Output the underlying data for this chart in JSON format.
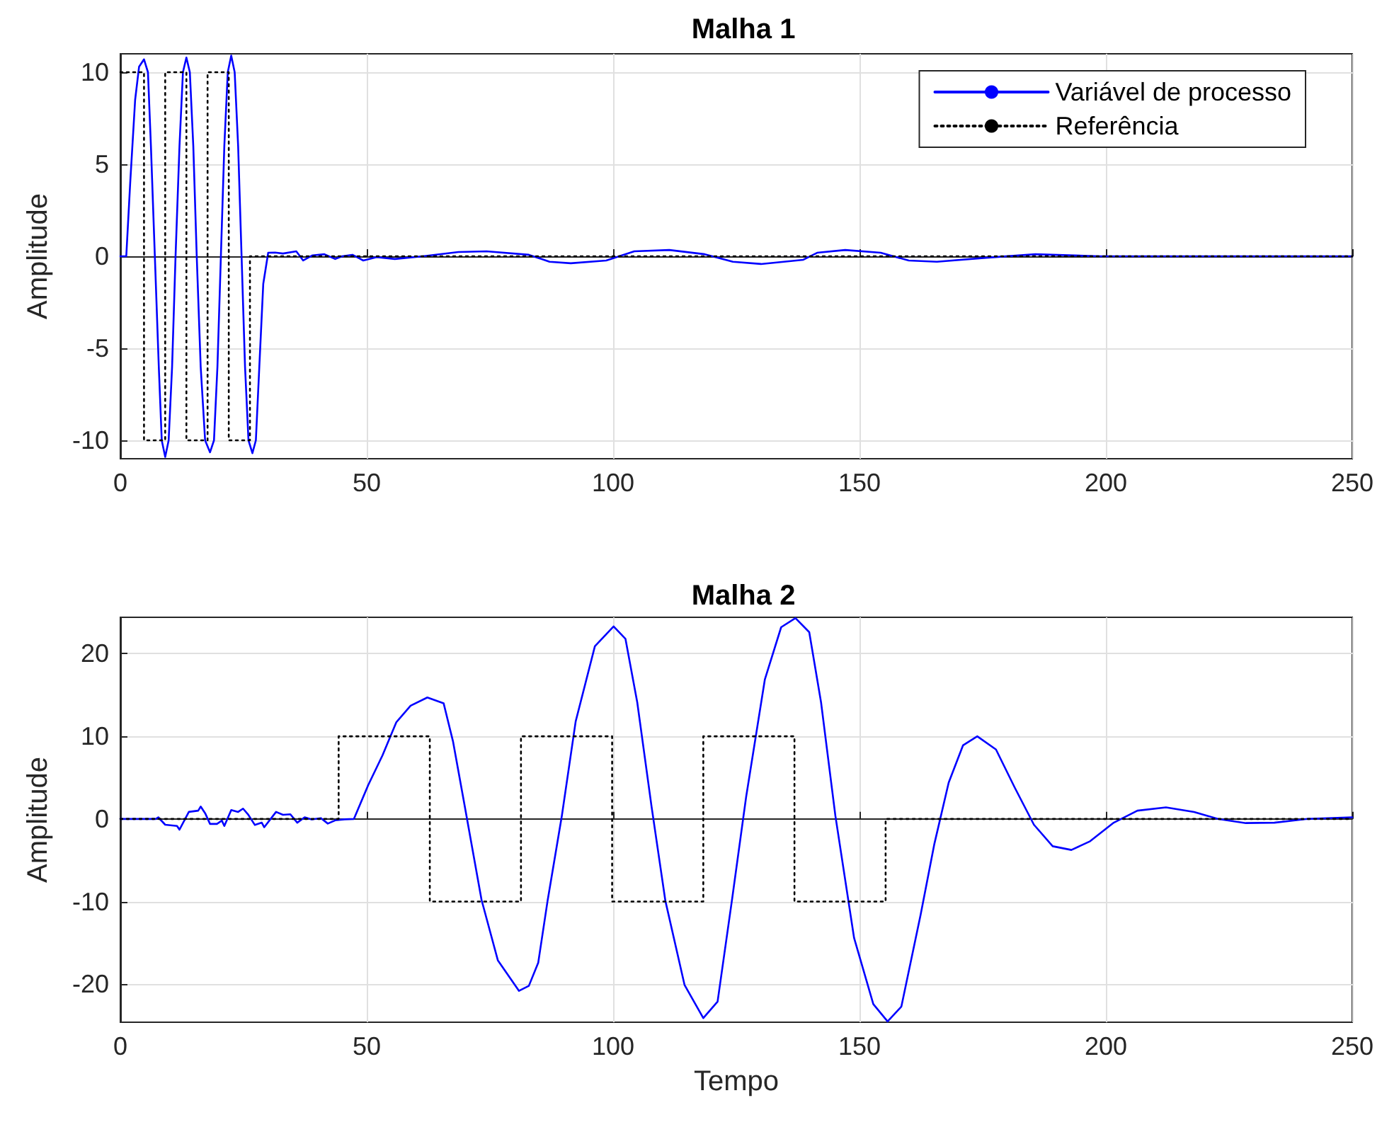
{
  "chart_data": [
    {
      "type": "line",
      "title": "Malha 1",
      "ylabel": "Amplitude",
      "xlim": [
        0,
        250
      ],
      "xticks": [
        0,
        50,
        100,
        150,
        200,
        250
      ],
      "ylim": [
        -11,
        11
      ],
      "yticks": [
        -10,
        -5,
        0,
        5,
        10
      ],
      "grid": true,
      "legend": "top right",
      "marker": "none",
      "series": [
        {
          "name": "Variável de processo",
          "color": "#0000ff",
          "line_style": "solid",
          "x": [
            0,
            1.2,
            2,
            3,
            3.8,
            4.8,
            5.6,
            6.2,
            7,
            7.8,
            8.4,
            9.1,
            9.8,
            10.5,
            11.2,
            12,
            12.7,
            13.4,
            14.1,
            14.8,
            15.5,
            16.3,
            17.2,
            18.2,
            19,
            19.7,
            20.4,
            21.1,
            21.8,
            22.5,
            23.2,
            23.9,
            24.6,
            25.3,
            26,
            26.8,
            27.5,
            28.2,
            29,
            30,
            31.4,
            33,
            35.7,
            37.1,
            39,
            41.4,
            43.6,
            45,
            47.1,
            49.3,
            52,
            55.7,
            61.4,
            68.6,
            74.3,
            82.9,
            87.1,
            91.4,
            98.6,
            104.3,
            111.4,
            118.6,
            124.3,
            130,
            138.6,
            141.4,
            147.1,
            154.3,
            160,
            165.7,
            175.7,
            185.7,
            198.6,
            212.9,
            250
          ],
          "values": [
            0,
            0,
            4,
            8.5,
            10.3,
            10.7,
            10,
            6,
            0,
            -6,
            -10,
            -10.9,
            -10,
            -6,
            0,
            6,
            10,
            10.8,
            10,
            6,
            0,
            -6,
            -10,
            -10.65,
            -10,
            -6,
            0,
            6,
            10,
            10.9,
            10,
            6,
            0,
            -6,
            -10,
            -10.7,
            -10,
            -6,
            -1.5,
            0.19,
            0.2,
            0.15,
            0.27,
            -0.23,
            0.05,
            0.11,
            -0.15,
            0,
            0.08,
            -0.23,
            -0.05,
            -0.15,
            0,
            0.23,
            0.27,
            0.08,
            -0.3,
            -0.38,
            -0.23,
            0.27,
            0.34,
            0.11,
            -0.3,
            -0.42,
            -0.19,
            0.19,
            0.34,
            0.19,
            -0.23,
            -0.3,
            -0.08,
            0.11,
            0,
            0,
            0
          ]
        },
        {
          "name": "Referência",
          "color": "#000000",
          "line_style": "dotted",
          "x": [
            0,
            4.8,
            4.8,
            9.1,
            9.1,
            13.4,
            13.4,
            17.7,
            17.7,
            22,
            22,
            26.3,
            26.3,
            250
          ],
          "values": [
            10,
            10,
            -10,
            -10,
            10,
            10,
            -10,
            -10,
            10,
            10,
            -10,
            -10,
            0,
            0
          ]
        }
      ]
    },
    {
      "type": "line",
      "title": "Malha 2",
      "xlabel": "Tempo",
      "ylabel": "Amplitude",
      "xlim": [
        0,
        250
      ],
      "xticks": [
        0,
        50,
        100,
        150,
        200,
        250
      ],
      "ylim": [
        -24.6,
        24.4
      ],
      "yticks": [
        -20,
        -10,
        0,
        10,
        20
      ],
      "grid": true,
      "marker": "none",
      "series": [
        {
          "color": "#0000ff",
          "line_style": "solid",
          "x": [
            0,
            7.2,
            7.7,
            9.1,
            11.5,
            12,
            13.9,
            15.8,
            16.3,
            17.2,
            18.2,
            19.6,
            20.6,
            21.1,
            22.5,
            23.9,
            24.9,
            25.9,
            27.3,
            28.7,
            29.2,
            31.6,
            33,
            34.5,
            35.9,
            37.4,
            38.8,
            40.7,
            42.1,
            43.6,
            45.5,
            47.4,
            50.3,
            53.2,
            56,
            58.9,
            62.3,
            65.6,
            67.5,
            69.9,
            73.3,
            76.6,
            80.9,
            82.9,
            84.8,
            86.7,
            89.6,
            92.4,
            96.3,
            100.1,
            102.5,
            104.9,
            107.8,
            110.6,
            114.5,
            118.3,
            121.2,
            124.1,
            127,
            130.8,
            134.1,
            137,
            139.8,
            142.2,
            145.1,
            148.9,
            152.8,
            155.7,
            158.5,
            162.4,
            165.2,
            168.1,
            171,
            173.9,
            177.7,
            181.5,
            185.4,
            189.2,
            193,
            196.8,
            201.6,
            206.4,
            212.2,
            217.9,
            222.7,
            228.4,
            234.2,
            240.9,
            250
          ],
          "values": [
            0,
            0,
            0.2,
            -0.7,
            -0.85,
            -1.3,
            0.85,
            1,
            1.5,
            0.7,
            -0.6,
            -0.6,
            -0.2,
            -0.85,
            1.07,
            0.85,
            1.25,
            0.56,
            -0.73,
            -0.45,
            -1,
            0.85,
            0.5,
            0.56,
            -0.45,
            0.2,
            -0.05,
            0.1,
            -0.56,
            -0.17,
            -0.05,
            0,
            4.1,
            7.7,
            11.7,
            13.7,
            14.7,
            14,
            9.4,
            1.5,
            -9.8,
            -17.1,
            -20.8,
            -20.2,
            -17.4,
            -9.9,
            0.4,
            11.8,
            20.9,
            23.3,
            21.8,
            14.1,
            1.5,
            -9.9,
            -20.1,
            -24.1,
            -22.1,
            -9.9,
            2.7,
            16.9,
            23.2,
            24.3,
            22.6,
            14.1,
            0.4,
            -14.4,
            -22.4,
            -24.5,
            -22.7,
            -11.6,
            -3,
            4.4,
            8.9,
            10,
            8.4,
            3.8,
            -0.7,
            -3.3,
            -3.75,
            -2.7,
            -0.45,
            1,
            1.4,
            0.85,
            0,
            -0.5,
            -0.45,
            0,
            0.2
          ]
        },
        {
          "color": "#000000",
          "line_style": "dotted",
          "x": [
            0,
            44.3,
            44.3,
            62.8,
            62.8,
            81.3,
            81.3,
            99.8,
            99.8,
            118.3,
            118.3,
            136.8,
            136.8,
            155.3,
            155.3,
            250
          ],
          "values": [
            0,
            0,
            10,
            10,
            -10,
            -10,
            10,
            10,
            -10,
            -10,
            10,
            10,
            -10,
            -10,
            0,
            0
          ]
        }
      ]
    }
  ]
}
